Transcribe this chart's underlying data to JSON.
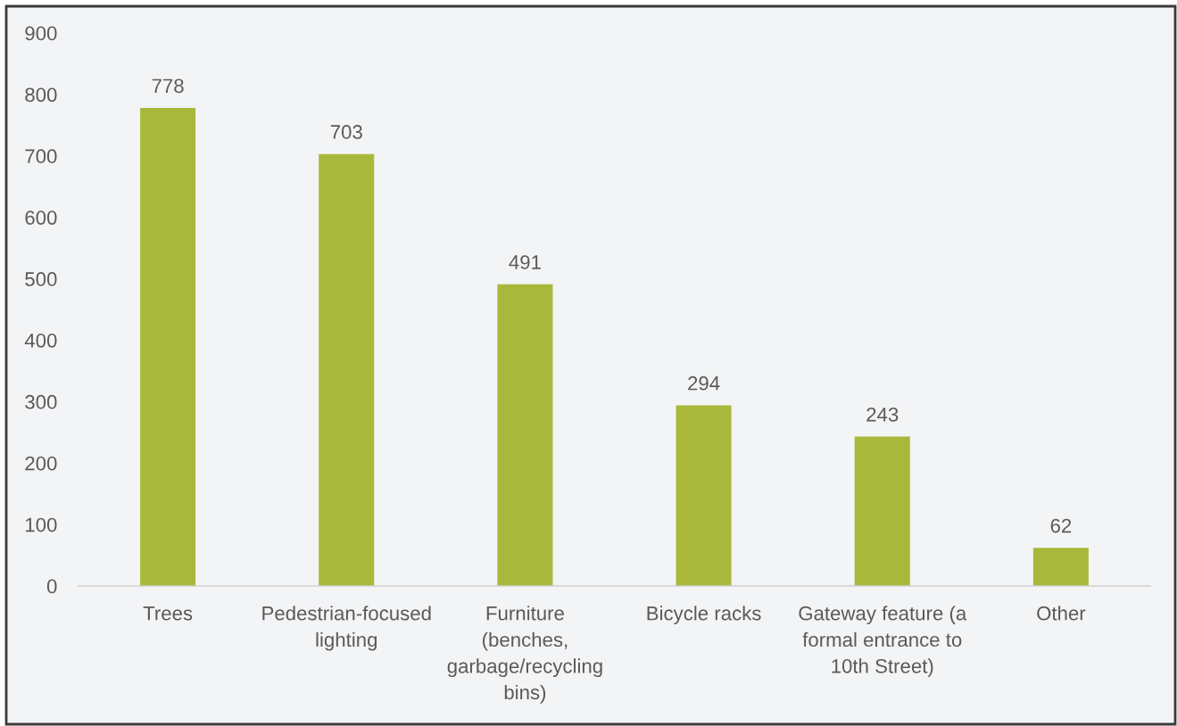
{
  "chart_data": {
    "type": "bar",
    "categories": [
      "Trees",
      "Pedestrian-focused\nlighting",
      "Furniture\n(benches,\ngarbage/recycling\nbins)",
      "Bicycle racks",
      "Gateway feature (a\nformal entrance to\n10th Street)",
      "Other"
    ],
    "values": [
      778,
      703,
      491,
      294,
      243,
      62
    ],
    "color": "#a8b83b",
    "ylim": [
      0,
      900
    ],
    "yticks": [
      0,
      100,
      200,
      300,
      400,
      500,
      600,
      700,
      800,
      900
    ],
    "data_labels": true
  }
}
